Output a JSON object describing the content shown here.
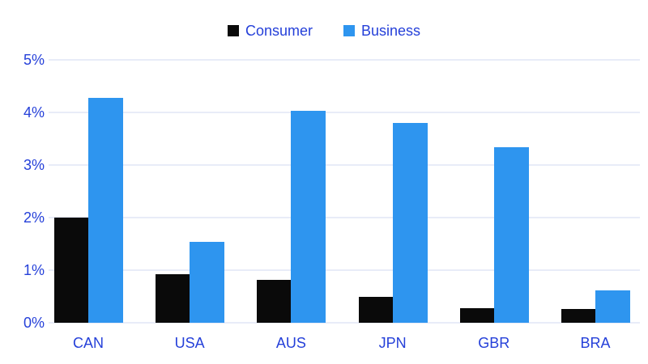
{
  "chart_data": {
    "type": "bar",
    "title": "",
    "xlabel": "",
    "ylabel": "",
    "categories": [
      "CAN",
      "USA",
      "AUS",
      "JPN",
      "GBR",
      "BRA"
    ],
    "series": [
      {
        "name": "Consumer",
        "color": "#0a0a0a",
        "values": [
          2.0,
          0.92,
          0.82,
          0.5,
          0.28,
          0.26
        ]
      },
      {
        "name": "Business",
        "color": "#2e95ef",
        "values": [
          4.28,
          1.54,
          4.03,
          3.8,
          3.34,
          0.62
        ]
      }
    ],
    "ylim": [
      0,
      5
    ],
    "yticks": [
      0,
      1,
      2,
      3,
      4,
      5
    ],
    "ytick_labels": [
      "0%",
      "1%",
      "2%",
      "3%",
      "4%",
      "5%"
    ],
    "grid": true,
    "legend_position": "top-center"
  },
  "style": {
    "background_color": "#ffffff",
    "axis_text_color": "#2540d9",
    "gridline_color": "#e8ecf8",
    "consumer_color": "#0a0a0a",
    "business_color": "#2e95ef"
  }
}
